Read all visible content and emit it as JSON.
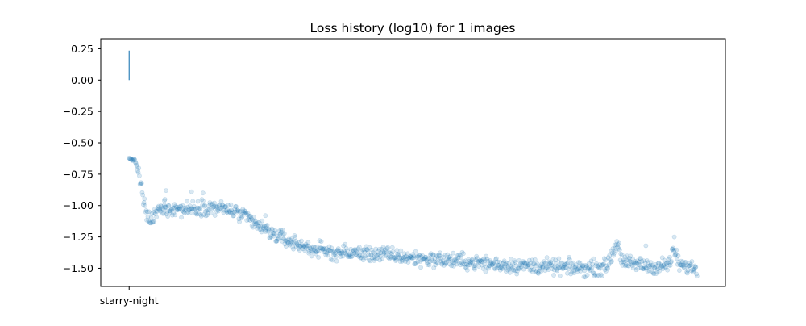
{
  "chart_data": {
    "type": "scatter",
    "title": "Loss history (log10) for 1 images",
    "xlabel": "",
    "ylabel": "",
    "categories": [
      "starry-night"
    ],
    "xlim": [
      -0.05,
      1.05
    ],
    "ylim": [
      -1.645,
      0.33
    ],
    "yticks": [
      "0.25",
      "0.00",
      "−0.25",
      "−0.50",
      "−0.75",
      "−1.00",
      "−1.25",
      "−1.50"
    ],
    "ytick_values": [
      0.25,
      0.0,
      -0.25,
      -0.5,
      -0.75,
      -1.0,
      -1.25,
      -1.5
    ],
    "grid": false,
    "legend": "none",
    "colors": {
      "points": "#1f77b4",
      "segment": "#1f77b4",
      "axes": "#000000"
    },
    "start_segment": {
      "x": 0,
      "y_from": 0.0,
      "y_to": 0.235
    },
    "series": [
      {
        "iterations": 1000,
        "x_range": [
          0,
          1
        ],
        "trend": [
          [
            0.0,
            -0.625
          ],
          [
            0.01,
            -0.64
          ],
          [
            0.015,
            -0.7
          ],
          [
            0.02,
            -0.82
          ],
          [
            0.025,
            -0.95
          ],
          [
            0.03,
            -1.08
          ],
          [
            0.04,
            -1.12
          ],
          [
            0.05,
            -1.04
          ],
          [
            0.07,
            -1.02
          ],
          [
            0.1,
            -1.03
          ],
          [
            0.13,
            -1.01
          ],
          [
            0.16,
            -1.02
          ],
          [
            0.18,
            -1.04
          ],
          [
            0.2,
            -1.08
          ],
          [
            0.22,
            -1.14
          ],
          [
            0.25,
            -1.22
          ],
          [
            0.28,
            -1.28
          ],
          [
            0.31,
            -1.33
          ],
          [
            0.35,
            -1.37
          ],
          [
            0.4,
            -1.38
          ],
          [
            0.45,
            -1.39
          ],
          [
            0.5,
            -1.42
          ],
          [
            0.55,
            -1.43
          ],
          [
            0.6,
            -1.45
          ],
          [
            0.65,
            -1.47
          ],
          [
            0.7,
            -1.48
          ],
          [
            0.75,
            -1.49
          ],
          [
            0.8,
            -1.5
          ],
          [
            0.84,
            -1.49
          ],
          [
            0.86,
            -1.29
          ],
          [
            0.87,
            -1.46
          ],
          [
            0.9,
            -1.47
          ],
          [
            0.93,
            -1.49
          ],
          [
            0.95,
            -1.47
          ],
          [
            0.96,
            -1.36
          ],
          [
            0.97,
            -1.48
          ],
          [
            1.0,
            -1.5
          ]
        ]
      }
    ]
  }
}
